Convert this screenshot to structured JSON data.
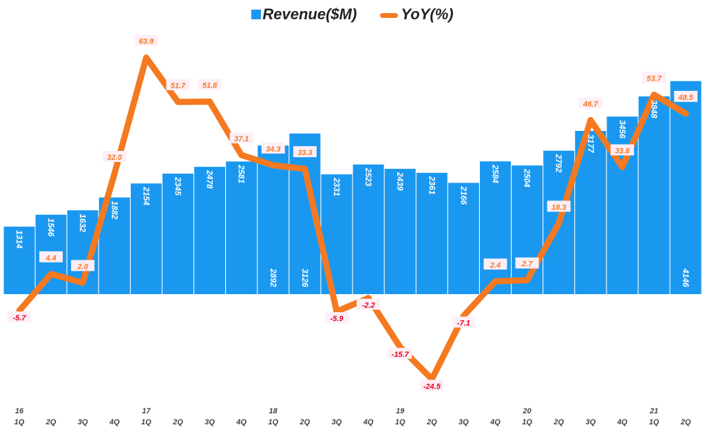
{
  "chart_data": {
    "type": "bar+line",
    "legend_position": "top",
    "categories": [
      "16 1Q",
      "2Q",
      "3Q",
      "4Q",
      "17 1Q",
      "2Q",
      "3Q",
      "4Q",
      "18 1Q",
      "2Q",
      "3Q",
      "4Q",
      "19 1Q",
      "2Q",
      "3Q",
      "4Q",
      "20 1Q",
      "2Q",
      "3Q",
      "4Q",
      "21 1Q",
      "2Q"
    ],
    "x_top_labels": [
      "16",
      "",
      "",
      "",
      "17",
      "",
      "",
      "",
      "18",
      "",
      "",
      "",
      "19",
      "",
      "",
      "",
      "20",
      "",
      "",
      "",
      "21",
      ""
    ],
    "x_bottom_labels": [
      "1Q",
      "2Q",
      "3Q",
      "4Q",
      "1Q",
      "2Q",
      "3Q",
      "4Q",
      "1Q",
      "2Q",
      "3Q",
      "4Q",
      "1Q",
      "2Q",
      "3Q",
      "4Q",
      "1Q",
      "2Q",
      "3Q",
      "4Q",
      "1Q",
      "2Q"
    ],
    "series": [
      {
        "name": "Revenue($M)",
        "type": "bar",
        "color": "#1a98f0",
        "values": [
          1314,
          1546,
          1632,
          1882,
          2154,
          2345,
          2478,
          2581,
          2892,
          3126,
          2331,
          2523,
          2439,
          2361,
          2166,
          2584,
          2504,
          2792,
          3177,
          3456,
          3848,
          4146
        ]
      },
      {
        "name": "YoY(%)",
        "type": "line",
        "color": "#f47920",
        "values": [
          -5.7,
          4.4,
          2.0,
          32.0,
          63.9,
          51.7,
          51.8,
          37.1,
          34.3,
          33.3,
          -5.9,
          -2.2,
          -15.7,
          -24.5,
          -7.1,
          2.4,
          2.7,
          18.3,
          46.7,
          33.8,
          53.7,
          48.5
        ]
      }
    ],
    "grid": false
  }
}
